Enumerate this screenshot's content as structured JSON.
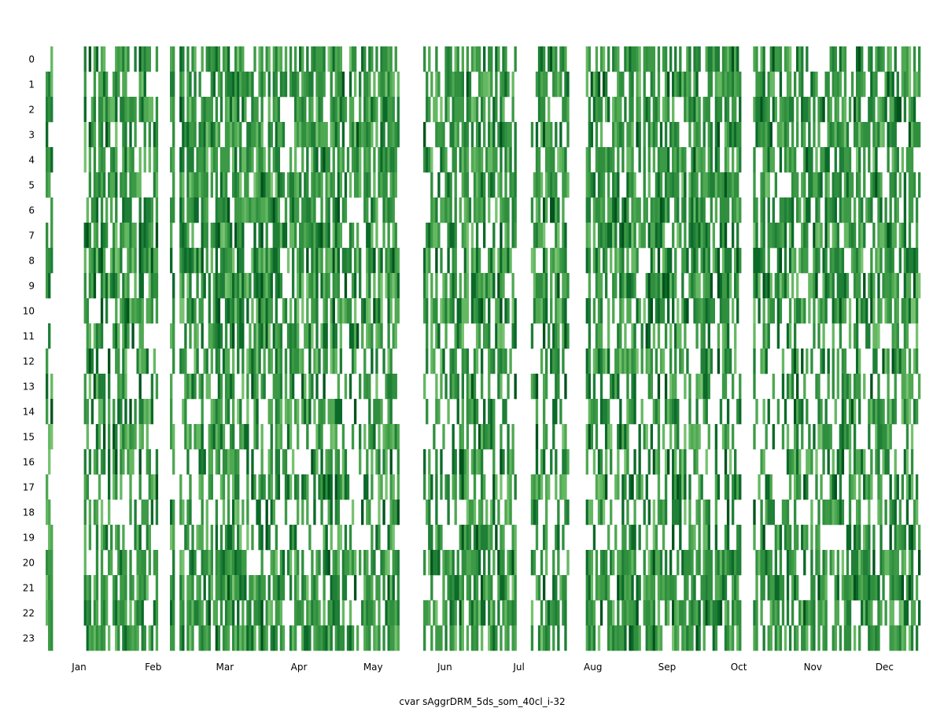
{
  "chart_data": {
    "type": "heatmap",
    "title": "",
    "xlabel": "cvar sAggrDRM_5ds_som_40cl_i-32",
    "ylabel": "",
    "y_categories": [
      "0",
      "1",
      "2",
      "3",
      "4",
      "5",
      "6",
      "7",
      "8",
      "9",
      "10",
      "11",
      "12",
      "13",
      "14",
      "15",
      "16",
      "17",
      "18",
      "19",
      "20",
      "21",
      "22",
      "23"
    ],
    "x_tick_labels": [
      "Jan",
      "Feb",
      "Mar",
      "Apr",
      "May",
      "Jun",
      "Jul",
      "Aug",
      "Sep",
      "Oct",
      "Nov",
      "Dec"
    ],
    "x_tick_day_of_year": [
      15,
      46,
      76,
      107,
      138,
      168,
      199,
      230,
      261,
      291,
      322,
      352
    ],
    "xlim_day_of_year": [
      1,
      366
    ],
    "ylim_hour": [
      0,
      23
    ],
    "colormap": "Greens",
    "color_light": "#74c476",
    "color_mid": "#31a354",
    "color_dark": "#00531c",
    "background": "#ffffff",
    "grid": false,
    "legend": "none",
    "active_day_ranges": [
      [
        1,
        3
      ],
      [
        17,
        47
      ],
      [
        53,
        54
      ],
      [
        57,
        148
      ],
      [
        159,
        197
      ],
      [
        204,
        219
      ],
      [
        227,
        291
      ],
      [
        297,
        340
      ],
      [
        340,
        366
      ]
    ]
  }
}
